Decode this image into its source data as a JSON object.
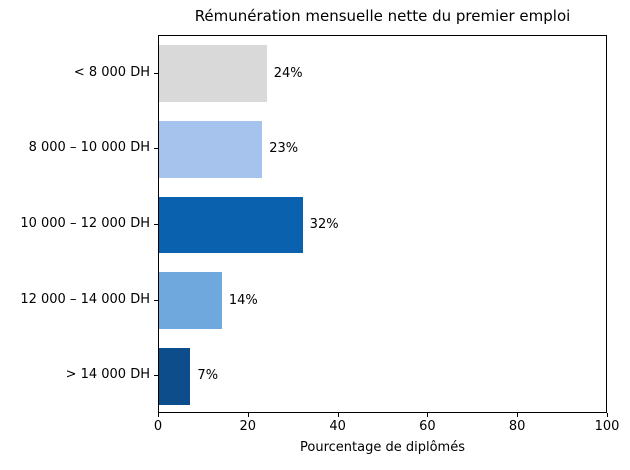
{
  "chart_data": {
    "type": "bar",
    "orientation": "horizontal",
    "title": "Rémunération mensuelle nette du premier emploi",
    "xlabel": "Pourcentage de diplômés",
    "categories": [
      "< 8 000 DH",
      "8 000 – 10 000 DH",
      "10 000 – 12 000 DH",
      "12 000 – 14 000 DH",
      "> 14 000 DH"
    ],
    "values": [
      24,
      23,
      32,
      14,
      7
    ],
    "value_labels": [
      "24%",
      "23%",
      "32%",
      "14%",
      "7%"
    ],
    "bar_colors": [
      "#d9d9d9",
      "#a6c3ee",
      "#0a61ae",
      "#6fa8dc",
      "#0d4d8c"
    ],
    "xlim": [
      0,
      100
    ],
    "xticks": [
      0,
      20,
      40,
      60,
      80,
      100
    ],
    "grid": false
  }
}
